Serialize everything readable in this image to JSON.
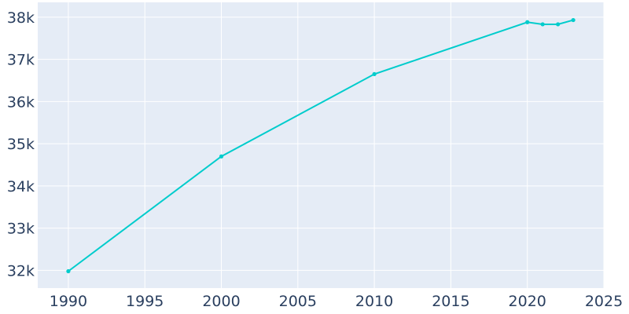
{
  "chart_data": {
    "type": "line",
    "title": "",
    "xlabel": "",
    "ylabel": "",
    "xlim": [
      1988,
      2025
    ],
    "ylim": [
      31580,
      38350
    ],
    "grid": true,
    "x_ticks": [
      1990,
      1995,
      2000,
      2005,
      2010,
      2015,
      2020,
      2025
    ],
    "y_ticks": [
      32000,
      33000,
      34000,
      35000,
      36000,
      37000,
      38000
    ],
    "x_tick_labels": [
      "1990",
      "1995",
      "2000",
      "2005",
      "2010",
      "2015",
      "2020",
      "2025"
    ],
    "y_tick_labels": [
      "32k",
      "33k",
      "34k",
      "35k",
      "36k",
      "37k",
      "38k"
    ],
    "series": [
      {
        "x": [
          1990,
          2000,
          2010,
          2020,
          2021,
          2022,
          2023
        ],
        "y": [
          31980,
          34700,
          36650,
          37880,
          37830,
          37830,
          37930
        ]
      }
    ],
    "colors": {
      "plot_background": "#e5ecf6",
      "grid": "#ffffff",
      "line": "#00cccc",
      "text": "#2a3f5f"
    }
  }
}
